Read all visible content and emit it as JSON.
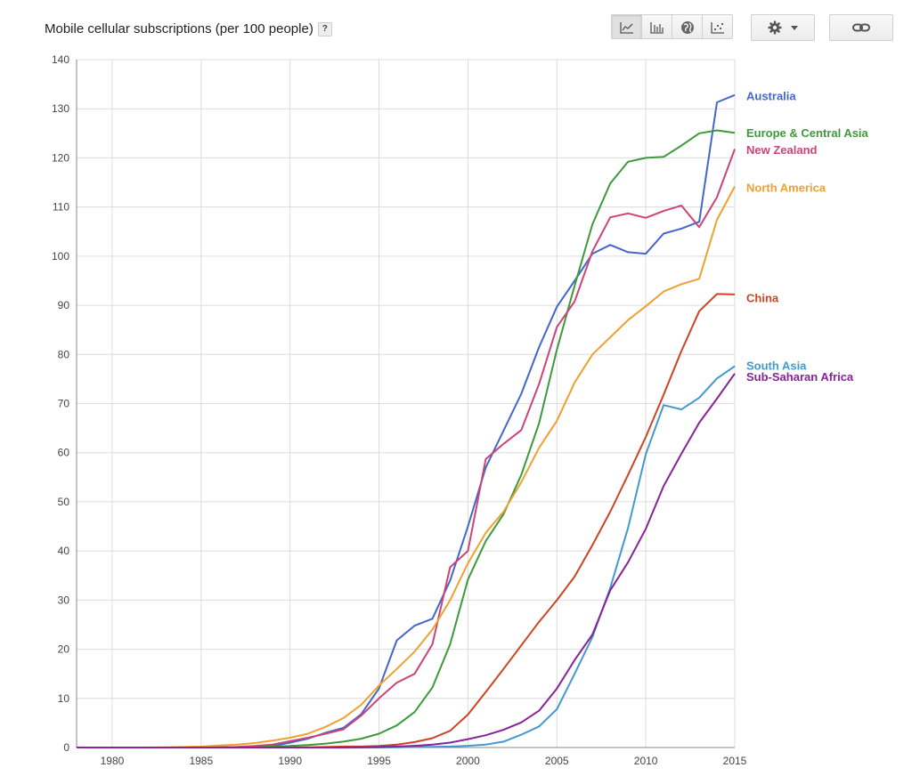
{
  "header": {
    "title": "Mobile cellular subscriptions (per 100 people)",
    "help_label": "?"
  },
  "toolbar": {
    "buttons": [
      "line-chart-icon",
      "bar-chart-icon",
      "map-icon",
      "scatter-icon"
    ],
    "active": "line-chart-icon",
    "settings_icon": "gear-icon",
    "dropdown_icon": "caret-down-icon",
    "link_icon": "link-icon"
  },
  "chart_data": {
    "type": "line",
    "title": "Mobile cellular subscriptions (per 100 people)",
    "xlim": [
      1978,
      2015
    ],
    "ylim": [
      0,
      140
    ],
    "xticks": [
      1980,
      1985,
      1990,
      1995,
      2000,
      2005,
      2010,
      2015
    ],
    "yticks": [
      0,
      10,
      20,
      30,
      40,
      50,
      60,
      70,
      80,
      90,
      100,
      110,
      120,
      130,
      140
    ],
    "grid": true,
    "legend_placement": "right, at line ends",
    "x": [
      1978,
      1979,
      1980,
      1981,
      1982,
      1983,
      1984,
      1985,
      1986,
      1987,
      1988,
      1989,
      1990,
      1991,
      1992,
      1993,
      1994,
      1995,
      1996,
      1997,
      1998,
      1999,
      2000,
      2001,
      2002,
      2003,
      2004,
      2005,
      2006,
      2007,
      2008,
      2009,
      2010,
      2011,
      2012,
      2013,
      2014,
      2015
    ],
    "series": [
      {
        "name": "Australia",
        "color": "#4466cc",
        "values": [
          0,
          0,
          0,
          0,
          0,
          0,
          0,
          0,
          0,
          0,
          0.1,
          0.3,
          1,
          1.8,
          3,
          4,
          6.8,
          12,
          21.8,
          24.8,
          26.2,
          34,
          45,
          57,
          64.5,
          72,
          81.5,
          89.7,
          95,
          100.5,
          102.3,
          100.8,
          100.5,
          104.6,
          105.6,
          107,
          131.3,
          132.8
        ]
      },
      {
        "name": "Europe & Central Asia",
        "color": "#3c9a3c",
        "values": [
          0,
          0,
          0,
          0,
          0,
          0,
          0,
          0,
          0.05,
          0.1,
          0.15,
          0.2,
          0.3,
          0.5,
          0.8,
          1.2,
          1.8,
          2.8,
          4.5,
          7.2,
          12.2,
          21,
          34.2,
          42,
          47.5,
          55.5,
          66,
          81,
          94,
          106.5,
          114.8,
          119.2,
          120,
          120.2,
          122.5,
          125,
          125.6,
          125.1
        ]
      },
      {
        "name": "New Zealand",
        "color": "#cc4477",
        "values": [
          0,
          0,
          0,
          0,
          0,
          0,
          0,
          0,
          0.05,
          0.1,
          0.3,
          0.6,
          1.3,
          2,
          2.8,
          3.7,
          6.5,
          10,
          13.2,
          15,
          21,
          36.7,
          40,
          58.7,
          61.8,
          64.6,
          74,
          85.6,
          90.8,
          101,
          107.9,
          108.7,
          107.8,
          109.2,
          110.3,
          105.9,
          112,
          121.8
        ]
      },
      {
        "name": "North America",
        "color": "#f0a030",
        "values": [
          0,
          0,
          0,
          0,
          0,
          0.05,
          0.1,
          0.2,
          0.4,
          0.6,
          0.9,
          1.4,
          2,
          2.8,
          4.2,
          6,
          8.7,
          12.6,
          16,
          19.5,
          24,
          30,
          37.5,
          43.7,
          48,
          54,
          61,
          66.5,
          74.3,
          80,
          83.5,
          87,
          89.8,
          92.8,
          94.3,
          95.4,
          107.4,
          114.2
        ]
      },
      {
        "name": "China",
        "color": "#cc4422",
        "values": [
          0,
          0,
          0,
          0,
          0,
          0,
          0,
          0,
          0,
          0,
          0,
          0,
          0,
          0.05,
          0.1,
          0.2,
          0.2,
          0.3,
          0.6,
          1.1,
          1.9,
          3.4,
          6.7,
          11.3,
          16,
          20.8,
          25.6,
          30,
          34.8,
          41.2,
          48,
          55.5,
          63.2,
          71.8,
          80.7,
          88.8,
          92.3,
          92.2
        ]
      },
      {
        "name": "South Asia",
        "color": "#4499cc",
        "values": [
          0,
          0,
          0,
          0,
          0,
          0,
          0,
          0,
          0,
          0,
          0,
          0,
          0,
          0,
          0,
          0,
          0,
          0,
          0.05,
          0.1,
          0.15,
          0.2,
          0.35,
          0.6,
          1.2,
          2.6,
          4.3,
          7.8,
          15,
          22.5,
          32.5,
          44.7,
          59.7,
          69.7,
          68.8,
          71.2,
          75.1,
          77.6
        ]
      },
      {
        "name": "Sub-Saharan Africa",
        "color": "#882299",
        "values": [
          0,
          0,
          0,
          0,
          0,
          0,
          0,
          0,
          0,
          0,
          0,
          0,
          0,
          0,
          0,
          0,
          0.05,
          0.1,
          0.2,
          0.35,
          0.6,
          1,
          1.7,
          2.5,
          3.6,
          5.1,
          7.5,
          12,
          17.8,
          23,
          32,
          37.7,
          44.5,
          53.2,
          59.8,
          66.1,
          71,
          76.1
        ]
      }
    ],
    "legend": [
      {
        "name": "Australia",
        "color": "#4466cc",
        "label_y": 132.5
      },
      {
        "name": "Europe & Central Asia",
        "color": "#3c9a3c",
        "label_y": 125
      },
      {
        "name": "New Zealand",
        "color": "#cc4477",
        "label_y": 121.5
      },
      {
        "name": "North America",
        "color": "#f0a030",
        "label_y": 113.8
      },
      {
        "name": "China",
        "color": "#cc4422",
        "label_y": 91.4
      },
      {
        "name": "South Asia",
        "color": "#4499cc",
        "label_y": 77.6
      },
      {
        "name": "Sub-Saharan Africa",
        "color": "#882299",
        "label_y": 75.3
      }
    ]
  }
}
